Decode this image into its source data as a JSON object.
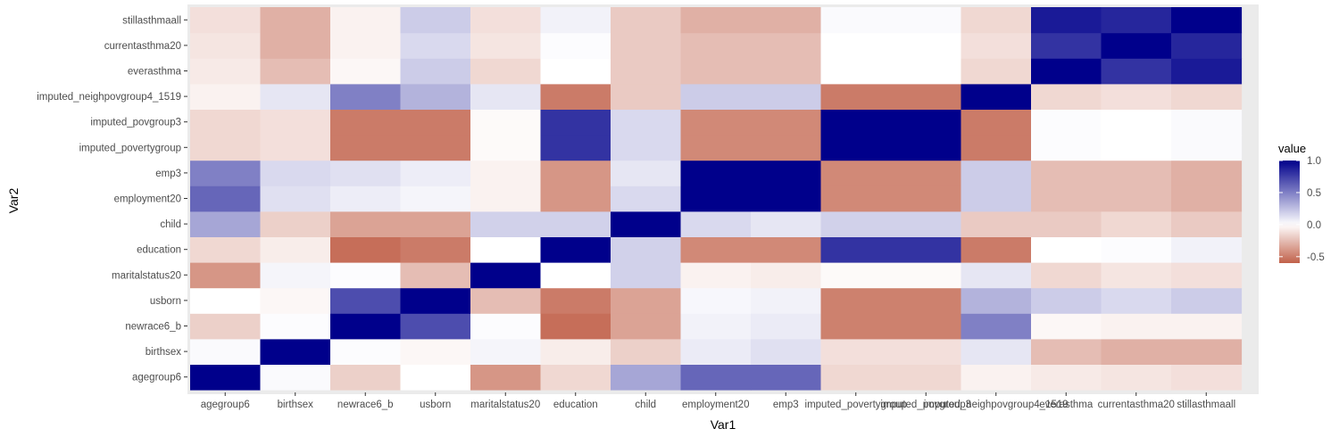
{
  "chart_data": {
    "type": "heatmap",
    "xlabel": "Var1",
    "ylabel": "Var2",
    "variables": [
      "agegroup6",
      "birthsex",
      "newrace6_b",
      "usborn",
      "maritalstatus20",
      "education",
      "child",
      "employment20",
      "emp3",
      "imputed_povertygroup",
      "imputed_povgroup3",
      "imputed_neighpovgroup4_1519",
      "everasthma",
      "currentasthma20",
      "stillasthmaall"
    ],
    "matrix": [
      [
        1.0,
        0.02,
        -0.18,
        0.0,
        -0.4,
        -0.15,
        0.35,
        0.6,
        0.5,
        -0.15,
        -0.15,
        -0.05,
        -0.08,
        -0.1,
        -0.12
      ],
      [
        0.02,
        1.0,
        0.01,
        -0.03,
        0.04,
        -0.07,
        -0.18,
        0.12,
        0.15,
        -0.12,
        -0.12,
        0.1,
        -0.25,
        -0.3,
        -0.3
      ],
      [
        -0.18,
        0.01,
        1.0,
        0.7,
        0.01,
        -0.55,
        -0.35,
        0.07,
        0.12,
        -0.5,
        -0.5,
        0.5,
        -0.03,
        -0.05,
        -0.05
      ],
      [
        0.0,
        -0.03,
        0.7,
        1.0,
        -0.25,
        -0.5,
        -0.35,
        0.04,
        0.07,
        -0.5,
        -0.5,
        0.3,
        0.2,
        0.15,
        0.2
      ],
      [
        -0.4,
        0.04,
        0.01,
        -0.25,
        1.0,
        0.0,
        0.18,
        -0.05,
        -0.05,
        -0.02,
        -0.02,
        0.1,
        -0.15,
        -0.1,
        -0.12
      ],
      [
        -0.15,
        -0.07,
        -0.55,
        -0.5,
        0.0,
        1.0,
        0.18,
        -0.4,
        -0.4,
        0.8,
        0.8,
        -0.5,
        0.0,
        0.01,
        0.05
      ],
      [
        0.35,
        -0.18,
        -0.35,
        -0.35,
        0.18,
        0.18,
        1.0,
        0.15,
        0.1,
        0.15,
        0.15,
        -0.2,
        -0.2,
        -0.2,
        -0.2
      ],
      [
        0.6,
        0.08,
        0.05,
        0.03,
        -0.05,
        -0.45,
        0.15,
        1.0,
        1.0,
        -0.45,
        -0.45,
        0.2,
        -0.25,
        -0.25,
        -0.3
      ],
      [
        0.6,
        0.12,
        0.08,
        0.05,
        -0.07,
        -0.45,
        0.1,
        1.0,
        1.0,
        -0.45,
        -0.45,
        0.2,
        -0.25,
        -0.25,
        -0.3
      ],
      [
        -0.15,
        -0.12,
        -0.48,
        -0.48,
        -0.02,
        0.8,
        0.18,
        -0.45,
        -0.45,
        1.0,
        1.0,
        -0.5,
        0.0,
        0.0,
        0.02
      ],
      [
        -0.15,
        -0.12,
        -0.48,
        -0.48,
        -0.02,
        0.8,
        0.18,
        -0.45,
        -0.45,
        1.0,
        1.0,
        -0.5,
        0.0,
        0.0,
        0.02
      ],
      [
        -0.05,
        0.1,
        0.5,
        0.3,
        0.1,
        -0.5,
        -0.2,
        0.2,
        0.2,
        -0.5,
        -0.5,
        1.0,
        -0.15,
        -0.12,
        -0.15
      ],
      [
        -0.08,
        -0.25,
        -0.03,
        0.2,
        -0.15,
        0.0,
        -0.2,
        -0.25,
        -0.25,
        0.01,
        0.01,
        -0.15,
        1.0,
        0.8,
        0.9
      ],
      [
        -0.1,
        -0.3,
        -0.05,
        0.15,
        -0.1,
        0.01,
        -0.15,
        -0.25,
        -0.25,
        0.0,
        0.0,
        -0.12,
        0.8,
        1.0,
        0.85
      ],
      [
        -0.12,
        -0.3,
        -0.05,
        0.2,
        -0.12,
        0.05,
        -0.2,
        -0.3,
        -0.3,
        0.02,
        0.02,
        -0.15,
        0.9,
        0.85,
        1.0
      ]
    ],
    "legend": {
      "title": "value",
      "ticks": [
        {
          "value": 1.0,
          "label": "1.0"
        },
        {
          "value": 0.5,
          "label": "0.5"
        },
        {
          "value": 0.0,
          "label": "0.0"
        },
        {
          "value": -0.5,
          "label": "-0.5"
        }
      ],
      "limits": [
        -0.6,
        1.0
      ]
    },
    "colors": {
      "low": "#c1614a",
      "mid": "#ffffff",
      "high": "#00008b",
      "panel_background": "#ebebeb",
      "tick_text": "#4d4d4d"
    },
    "legend_position": "right"
  }
}
